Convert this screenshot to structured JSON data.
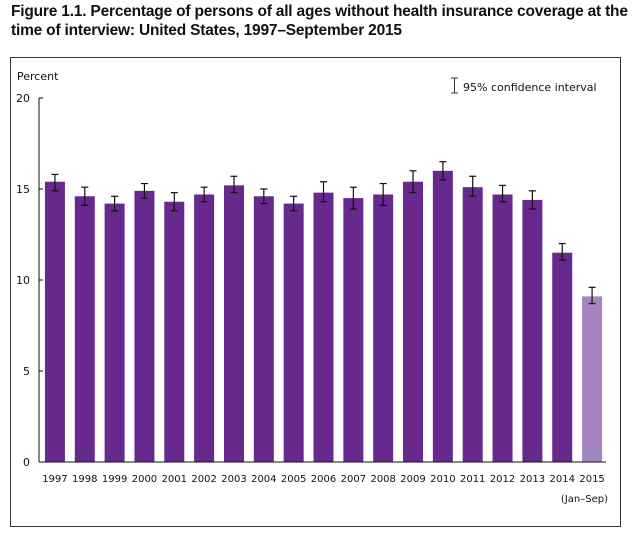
{
  "title": "Figure 1.1. Percentage of persons of all ages without health insurance coverage at the time of interview: United States, 1997–September 2015",
  "chart_data": {
    "type": "bar",
    "title": "Figure 1.1. Percentage of persons of all ages without health insurance coverage at the time of interview: United States, 1997–September 2015",
    "ylabel": "Percent",
    "xlabel": "",
    "ylim": [
      0,
      20
    ],
    "yticks": [
      0,
      5,
      10,
      15,
      20
    ],
    "categories": [
      "1997",
      "1998",
      "1999",
      "2000",
      "2001",
      "2002",
      "2003",
      "2004",
      "2005",
      "2006",
      "2007",
      "2008",
      "2009",
      "2010",
      "2011",
      "2012",
      "2013",
      "2014",
      "2015"
    ],
    "x_sublabel": {
      "category": "2015",
      "text": "(Jan–Sep)"
    },
    "values": [
      15.4,
      14.6,
      14.2,
      14.9,
      14.3,
      14.7,
      15.2,
      14.6,
      14.2,
      14.8,
      14.5,
      14.7,
      15.4,
      16.0,
      15.1,
      14.7,
      14.4,
      11.5,
      9.1
    ],
    "ci_lower": [
      14.9,
      14.1,
      13.8,
      14.5,
      13.8,
      14.3,
      14.8,
      14.2,
      13.8,
      14.3,
      13.9,
      14.1,
      14.8,
      15.5,
      14.6,
      14.3,
      13.9,
      11.1,
      8.7
    ],
    "ci_upper": [
      15.8,
      15.1,
      14.6,
      15.3,
      14.8,
      15.1,
      15.7,
      15.0,
      14.6,
      15.4,
      15.1,
      15.3,
      16.0,
      16.5,
      15.7,
      15.2,
      14.9,
      12.0,
      9.6
    ],
    "bar_colors": {
      "default": "#68298f",
      "highlight": "#a585c1"
    },
    "highlighted_categories": [
      "2015"
    ],
    "legend": {
      "label": "95% confidence interval",
      "position": "top-right"
    },
    "grid": false
  }
}
